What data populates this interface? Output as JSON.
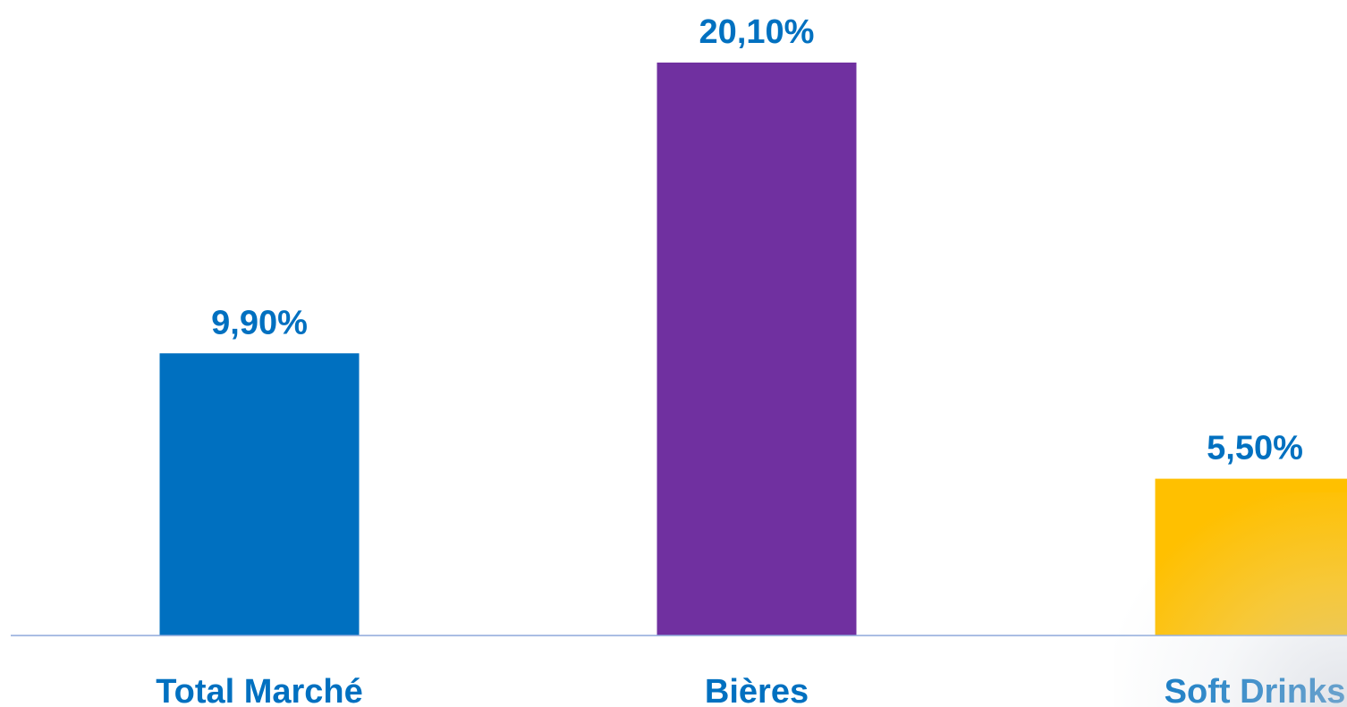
{
  "chart_data": {
    "type": "bar",
    "title": "",
    "xlabel": "",
    "ylabel": "",
    "categories": [
      "Total Marché",
      "Bières",
      "Soft Drinks"
    ],
    "values": [
      9.9,
      20.1,
      5.5
    ],
    "value_labels": [
      "9,90%",
      "20,10%",
      "5,50%"
    ],
    "bar_colors": [
      "#0070C0",
      "#7030A0",
      "#FFC000"
    ],
    "label_color": "#0070C0",
    "axis_color": "#8EA9DB",
    "ylim": [
      0,
      20.8
    ],
    "grid": false,
    "legend": "none"
  }
}
